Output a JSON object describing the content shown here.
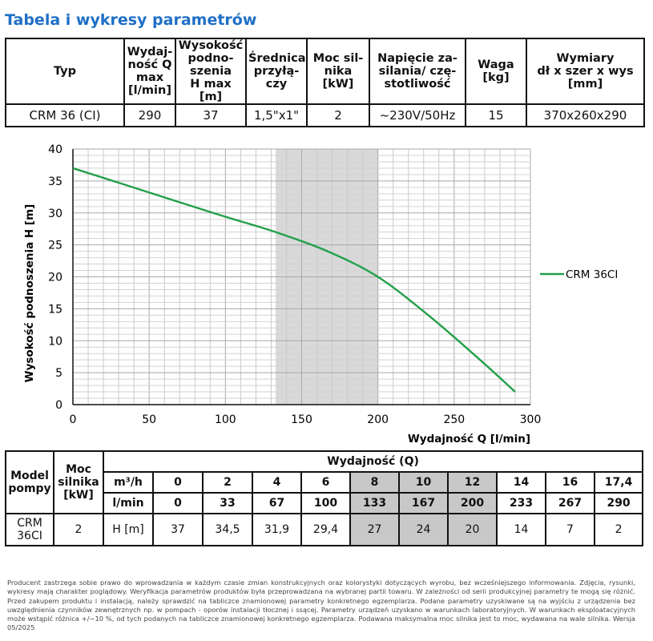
{
  "title": "Tabela i wykresy parametrów",
  "spec_table": {
    "headers": [
      "Typ",
      "Wydaj-\nność Q\nmax\n[l/min]",
      "Wysokość\npodno-\nszenia\nH max [m]",
      "Średnica\nprzyłą-\nczy",
      "Moc sil-\nnika\n[kW]",
      "Napięcie za-\nsilania/ czę-\nstotliwość",
      "Waga\n[kg]",
      "Wymiary\ndł x szer x wys\n[mm]"
    ],
    "row": [
      "CRM 36 (CI)",
      "290",
      "37",
      "1,5\"x1\"",
      "2",
      "~230V/50Hz",
      "15",
      "370x260x290"
    ]
  },
  "chart_data": {
    "type": "line",
    "xlabel": "Wydajność Q [l/min]",
    "ylabel": "Wysokość podnoszenia H [m]",
    "xlim": [
      0,
      300
    ],
    "ylim": [
      0,
      40
    ],
    "xticks": [
      "0",
      "50",
      "100",
      "150",
      "200",
      "250",
      "300"
    ],
    "yticks": [
      "0",
      "5",
      "10",
      "15",
      "20",
      "25",
      "30",
      "35",
      "40"
    ],
    "grid": true,
    "legend_position": "right",
    "shaded_range": [
      133,
      200
    ],
    "series": [
      {
        "name": "CRM 36CI",
        "color": "#22a04a",
        "x": [
          0,
          33,
          67,
          100,
          133,
          167,
          200,
          233,
          267,
          290
        ],
        "y": [
          37,
          34.5,
          31.9,
          29.4,
          27,
          24,
          20,
          14,
          7,
          2
        ]
      }
    ]
  },
  "perf_table": {
    "model_header": "Model\npompy",
    "power_header": "Moc\nsilnika\n[kW]",
    "group_header": "Wydajność (Q)",
    "unit_m3h": "m³/h",
    "unit_lmin": "l/min",
    "unit_h": "H [m]",
    "m3h": [
      "0",
      "2",
      "4",
      "6",
      "8",
      "10",
      "12",
      "14",
      "16",
      "17,4"
    ],
    "lmin": [
      "0",
      "33",
      "67",
      "100",
      "133",
      "167",
      "200",
      "233",
      "267",
      "290"
    ],
    "model": "CRM\n36CI",
    "power": "2",
    "heads": [
      "37",
      "34,5",
      "31,9",
      "29,4",
      "27",
      "24",
      "20",
      "14",
      "7",
      "2"
    ],
    "highlight_columns": [
      4,
      5,
      6
    ]
  },
  "footnote": "Producent zastrzega sobie prawo do wprowadzania w każdym czasie zmian konstrukcyjnych oraz kolorystyki dotyczących wyrobu, bez wcześniejszego informowania. Zdjęcia, rysunki, wykresy mają charakter poglądowy. Weryfikacja parametrów produktów była przeprowadzana na wybranej partii towaru. W zależności od serii produkcyjnej parametry te mogą się różnić. Przed zakupem produktu i instalacją, należy sprawdzić na tabliczce znamionowej parametry konkretnego egzemplarza. Podane parametry uzyskiwane są na wyjściu z urządzenia bez uwzględnienia czynników zewnętrznych np. w pompach - oporów instalacji tłocznej i ssącej. Parametry urządzeń uzyskano w warunkach laboratoryjnych. W warunkach eksploatacyjnych może wstąpić różnica +/−10 %, od tych podanych na tabliczce znamionowej konkretnego egzemplarza. Podawana maksymalna moc silnika jest to moc, wydawana na wale silnika. Wersja 05/2025"
}
